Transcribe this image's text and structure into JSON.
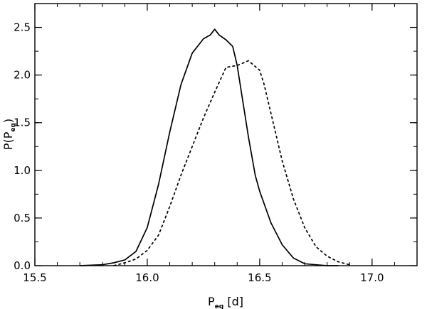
{
  "chart_data": {
    "type": "line",
    "title": "",
    "xlabel": "P",
    "xlabel_sub": "eq",
    "xlabel_unit": " [d]",
    "ylabel_prefix": "P(P",
    "ylabel_sub": "eq",
    "ylabel_suffix": ")",
    "xlim": [
      15.5,
      17.2
    ],
    "ylim": [
      0.0,
      2.75
    ],
    "xticks": [
      15.5,
      16.0,
      16.5,
      17.0
    ],
    "xtick_labels": [
      "15.5",
      "16.0",
      "16.5",
      "17.0"
    ],
    "yticks": [
      0.0,
      0.5,
      1.0,
      1.5,
      2.0,
      2.5
    ],
    "ytick_labels": [
      "0.0",
      "0.5",
      "1.0",
      "1.5",
      "2.0",
      "2.5"
    ],
    "grid": false,
    "series": [
      {
        "style": "solid",
        "x": [
          15.7,
          15.8,
          15.85,
          15.9,
          15.95,
          16.0,
          16.05,
          16.1,
          16.15,
          16.2,
          16.25,
          16.28,
          16.3,
          16.32,
          16.35,
          16.38,
          16.4,
          16.42,
          16.45,
          16.48,
          16.5,
          16.55,
          16.6,
          16.65,
          16.7,
          16.75,
          16.8,
          16.85
        ],
        "y": [
          0.0,
          0.01,
          0.03,
          0.06,
          0.15,
          0.4,
          0.85,
          1.4,
          1.9,
          2.23,
          2.38,
          2.42,
          2.48,
          2.42,
          2.37,
          2.3,
          2.1,
          1.8,
          1.35,
          0.95,
          0.78,
          0.45,
          0.22,
          0.08,
          0.02,
          0.01,
          0.0,
          0.0
        ]
      },
      {
        "style": "dashed",
        "x": [
          15.85,
          15.9,
          15.95,
          16.0,
          16.05,
          16.1,
          16.15,
          16.2,
          16.25,
          16.3,
          16.35,
          16.4,
          16.45,
          16.5,
          16.52,
          16.55,
          16.6,
          16.65,
          16.7,
          16.75,
          16.8,
          16.85,
          16.9
        ],
        "y": [
          0.0,
          0.03,
          0.07,
          0.16,
          0.32,
          0.62,
          0.95,
          1.25,
          1.55,
          1.82,
          2.08,
          2.1,
          2.15,
          2.05,
          1.9,
          1.6,
          1.1,
          0.7,
          0.4,
          0.2,
          0.1,
          0.04,
          0.01
        ]
      }
    ]
  }
}
